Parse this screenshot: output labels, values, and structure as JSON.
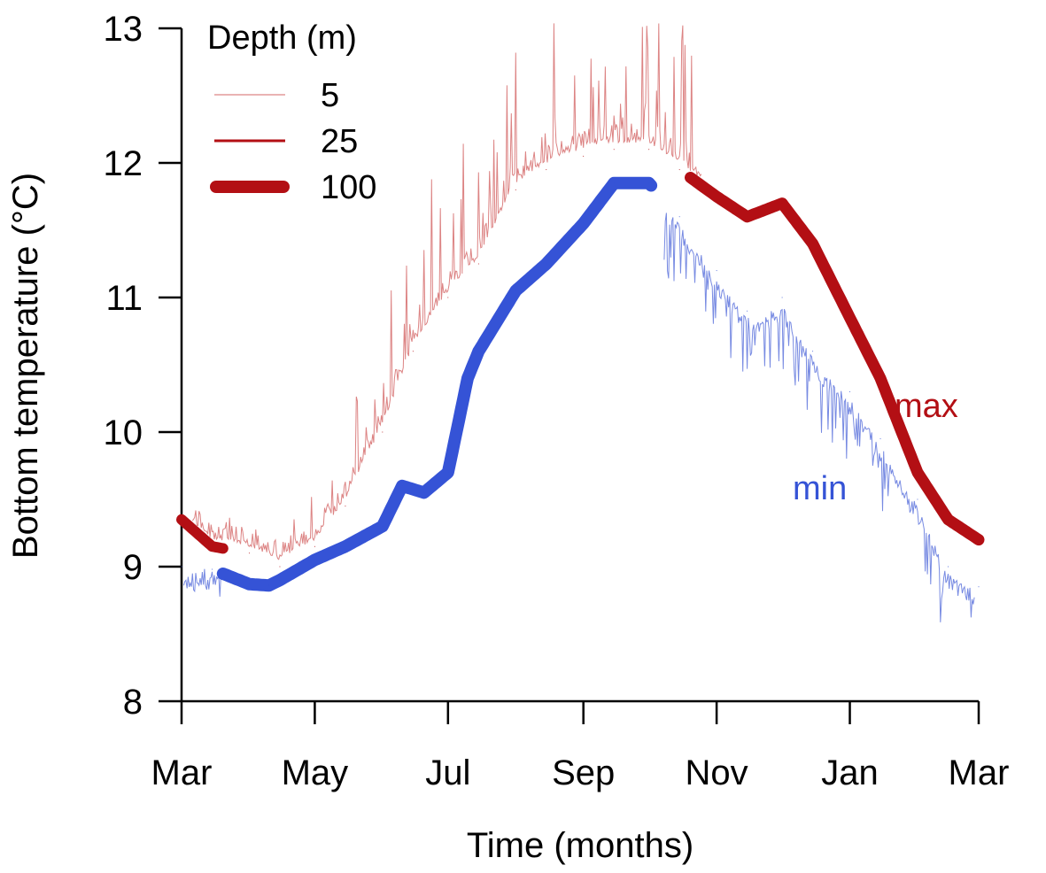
{
  "chart_data": {
    "type": "line",
    "title": "",
    "xlabel": "Time (months)",
    "ylabel": "Bottom temperature (°C)",
    "xlim": [
      "2000-03-01",
      "2001-03-01"
    ],
    "ylim": [
      8,
      13
    ],
    "x_ticks": [
      "Mar",
      "May",
      "Jul",
      "Sep",
      "Nov",
      "Jan",
      "Mar"
    ],
    "x_tick_dates": [
      "2000-03-01",
      "2000-05-01",
      "2000-07-01",
      "2000-09-01",
      "2000-11-01",
      "2001-01-01",
      "2001-03-01"
    ],
    "y_ticks": [
      8,
      9,
      10,
      11,
      12,
      13
    ],
    "grid": false,
    "legend": {
      "title": "Depth (m)",
      "placement": "top-left",
      "entries": [
        "5",
        "25",
        "100"
      ]
    },
    "colors": {
      "max": "#b30f14",
      "min": "#3553d6",
      "axis": "#000000"
    },
    "series": [
      {
        "name": "max",
        "x": [
          "2000-03-01",
          "2000-03-08",
          "2000-03-15",
          "2000-04-01",
          "2000-04-15",
          "2000-05-01",
          "2000-05-15",
          "2000-06-01",
          "2000-06-15",
          "2000-07-01",
          "2000-07-15",
          "2000-08-01",
          "2000-08-15",
          "2000-09-01",
          "2000-09-15",
          "2000-10-01",
          "2000-10-15",
          "2000-11-01",
          "2000-11-15",
          "2000-12-01",
          "2000-12-15",
          "2001-01-01",
          "2001-01-15",
          "2001-02-01",
          "2001-02-15",
          "2001-03-01"
        ],
        "y": [
          9.35,
          9.25,
          9.15,
          9.1,
          9.0,
          9.15,
          9.45,
          10.0,
          10.6,
          11.0,
          11.25,
          11.8,
          11.95,
          12.05,
          12.1,
          12.1,
          11.95,
          11.75,
          11.6,
          11.7,
          11.4,
          10.85,
          10.4,
          9.7,
          9.35,
          9.2
        ]
      },
      {
        "name": "min",
        "x": [
          "2000-03-01",
          "2000-03-15",
          "2000-04-01",
          "2000-04-10",
          "2000-04-15",
          "2000-05-01",
          "2000-05-15",
          "2000-06-01",
          "2000-06-10",
          "2000-06-20",
          "2000-07-01",
          "2000-07-10",
          "2000-07-15",
          "2000-08-01",
          "2000-08-15",
          "2000-09-01",
          "2000-09-15",
          "2000-10-01",
          "2000-10-15",
          "2000-11-01",
          "2000-11-15",
          "2000-12-01",
          "2000-12-15",
          "2001-01-01",
          "2001-01-15",
          "2001-02-01",
          "2001-02-15",
          "2001-03-01"
        ],
        "y": [
          9.0,
          8.98,
          8.87,
          8.86,
          8.9,
          9.05,
          9.15,
          9.3,
          9.6,
          9.55,
          9.7,
          10.4,
          10.6,
          11.05,
          11.25,
          11.55,
          11.85,
          11.85,
          11.6,
          11.2,
          10.9,
          11.0,
          10.6,
          10.3,
          9.95,
          9.5,
          9.0,
          8.85
        ]
      }
    ],
    "annotations": [
      {
        "text": "max",
        "color": "#b30f14"
      },
      {
        "text": "min",
        "color": "#3553d6"
      }
    ]
  }
}
